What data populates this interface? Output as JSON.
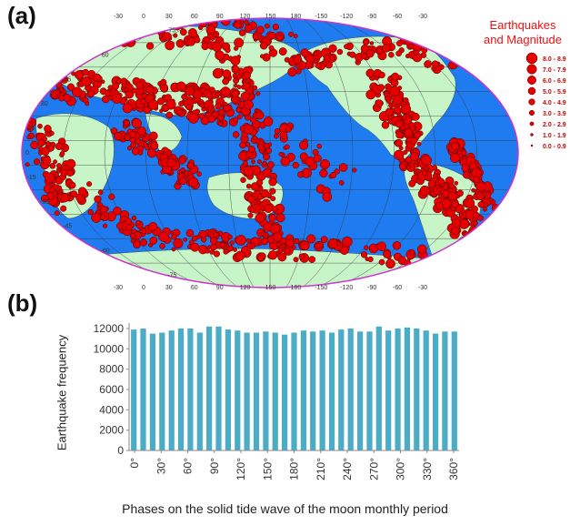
{
  "panel_a": {
    "label": "(a)",
    "legend_title_line1": "Earthquakes",
    "legend_title_line2": "and Magnitude",
    "legend": [
      "8.0 - 8.9",
      "7.0 - 7.9",
      "6.0 - 6.9",
      "5.0 - 5.9",
      "4.0 - 4.9",
      "3.0 - 3.9",
      "2.0 - 2.9",
      "1.0 - 1.9",
      "0.0 - 0.9"
    ],
    "lon_labels": [
      "-30",
      "0",
      "30",
      "60",
      "90",
      "120",
      "150",
      "180",
      "-150",
      "-120",
      "-90",
      "-60",
      "-30"
    ],
    "lat_labels_left": [
      "75",
      "60",
      "45",
      "30",
      "15",
      "0",
      "-15",
      "-30",
      "-45",
      "-60",
      "-75"
    ],
    "colors": {
      "ocean": "#1e7cf0",
      "land": "#c8f5c8",
      "quake": "#e60000",
      "border": "#cc33cc"
    }
  },
  "panel_b": {
    "label": "(b)",
    "colors": {
      "bar": "#4bacc6",
      "axis": "#888888"
    }
  },
  "chart_data": {
    "type": "bar",
    "xlabel": "Phases on the solid tide wave of the moon monthly period",
    "ylabel": "Earthquake frequency",
    "ylim": [
      0,
      12000
    ],
    "yticks": [
      "0",
      "2000",
      "4000",
      "6000",
      "8000",
      "10000",
      "12000"
    ],
    "xticks": [
      "0°",
      "30°",
      "60°",
      "90°",
      "120°",
      "150°",
      "180°",
      "210°",
      "240°",
      "270°",
      "300°",
      "330°",
      "360°"
    ],
    "values": [
      11900,
      12000,
      11500,
      11600,
      11800,
      12000,
      12000,
      11600,
      12200,
      12200,
      11900,
      11800,
      11600,
      11600,
      11700,
      11600,
      11400,
      11600,
      11800,
      11700,
      11800,
      11600,
      11900,
      12000,
      11700,
      11700,
      12200,
      11800,
      12000,
      12100,
      12000,
      11800,
      11500,
      11700,
      11700
    ]
  }
}
